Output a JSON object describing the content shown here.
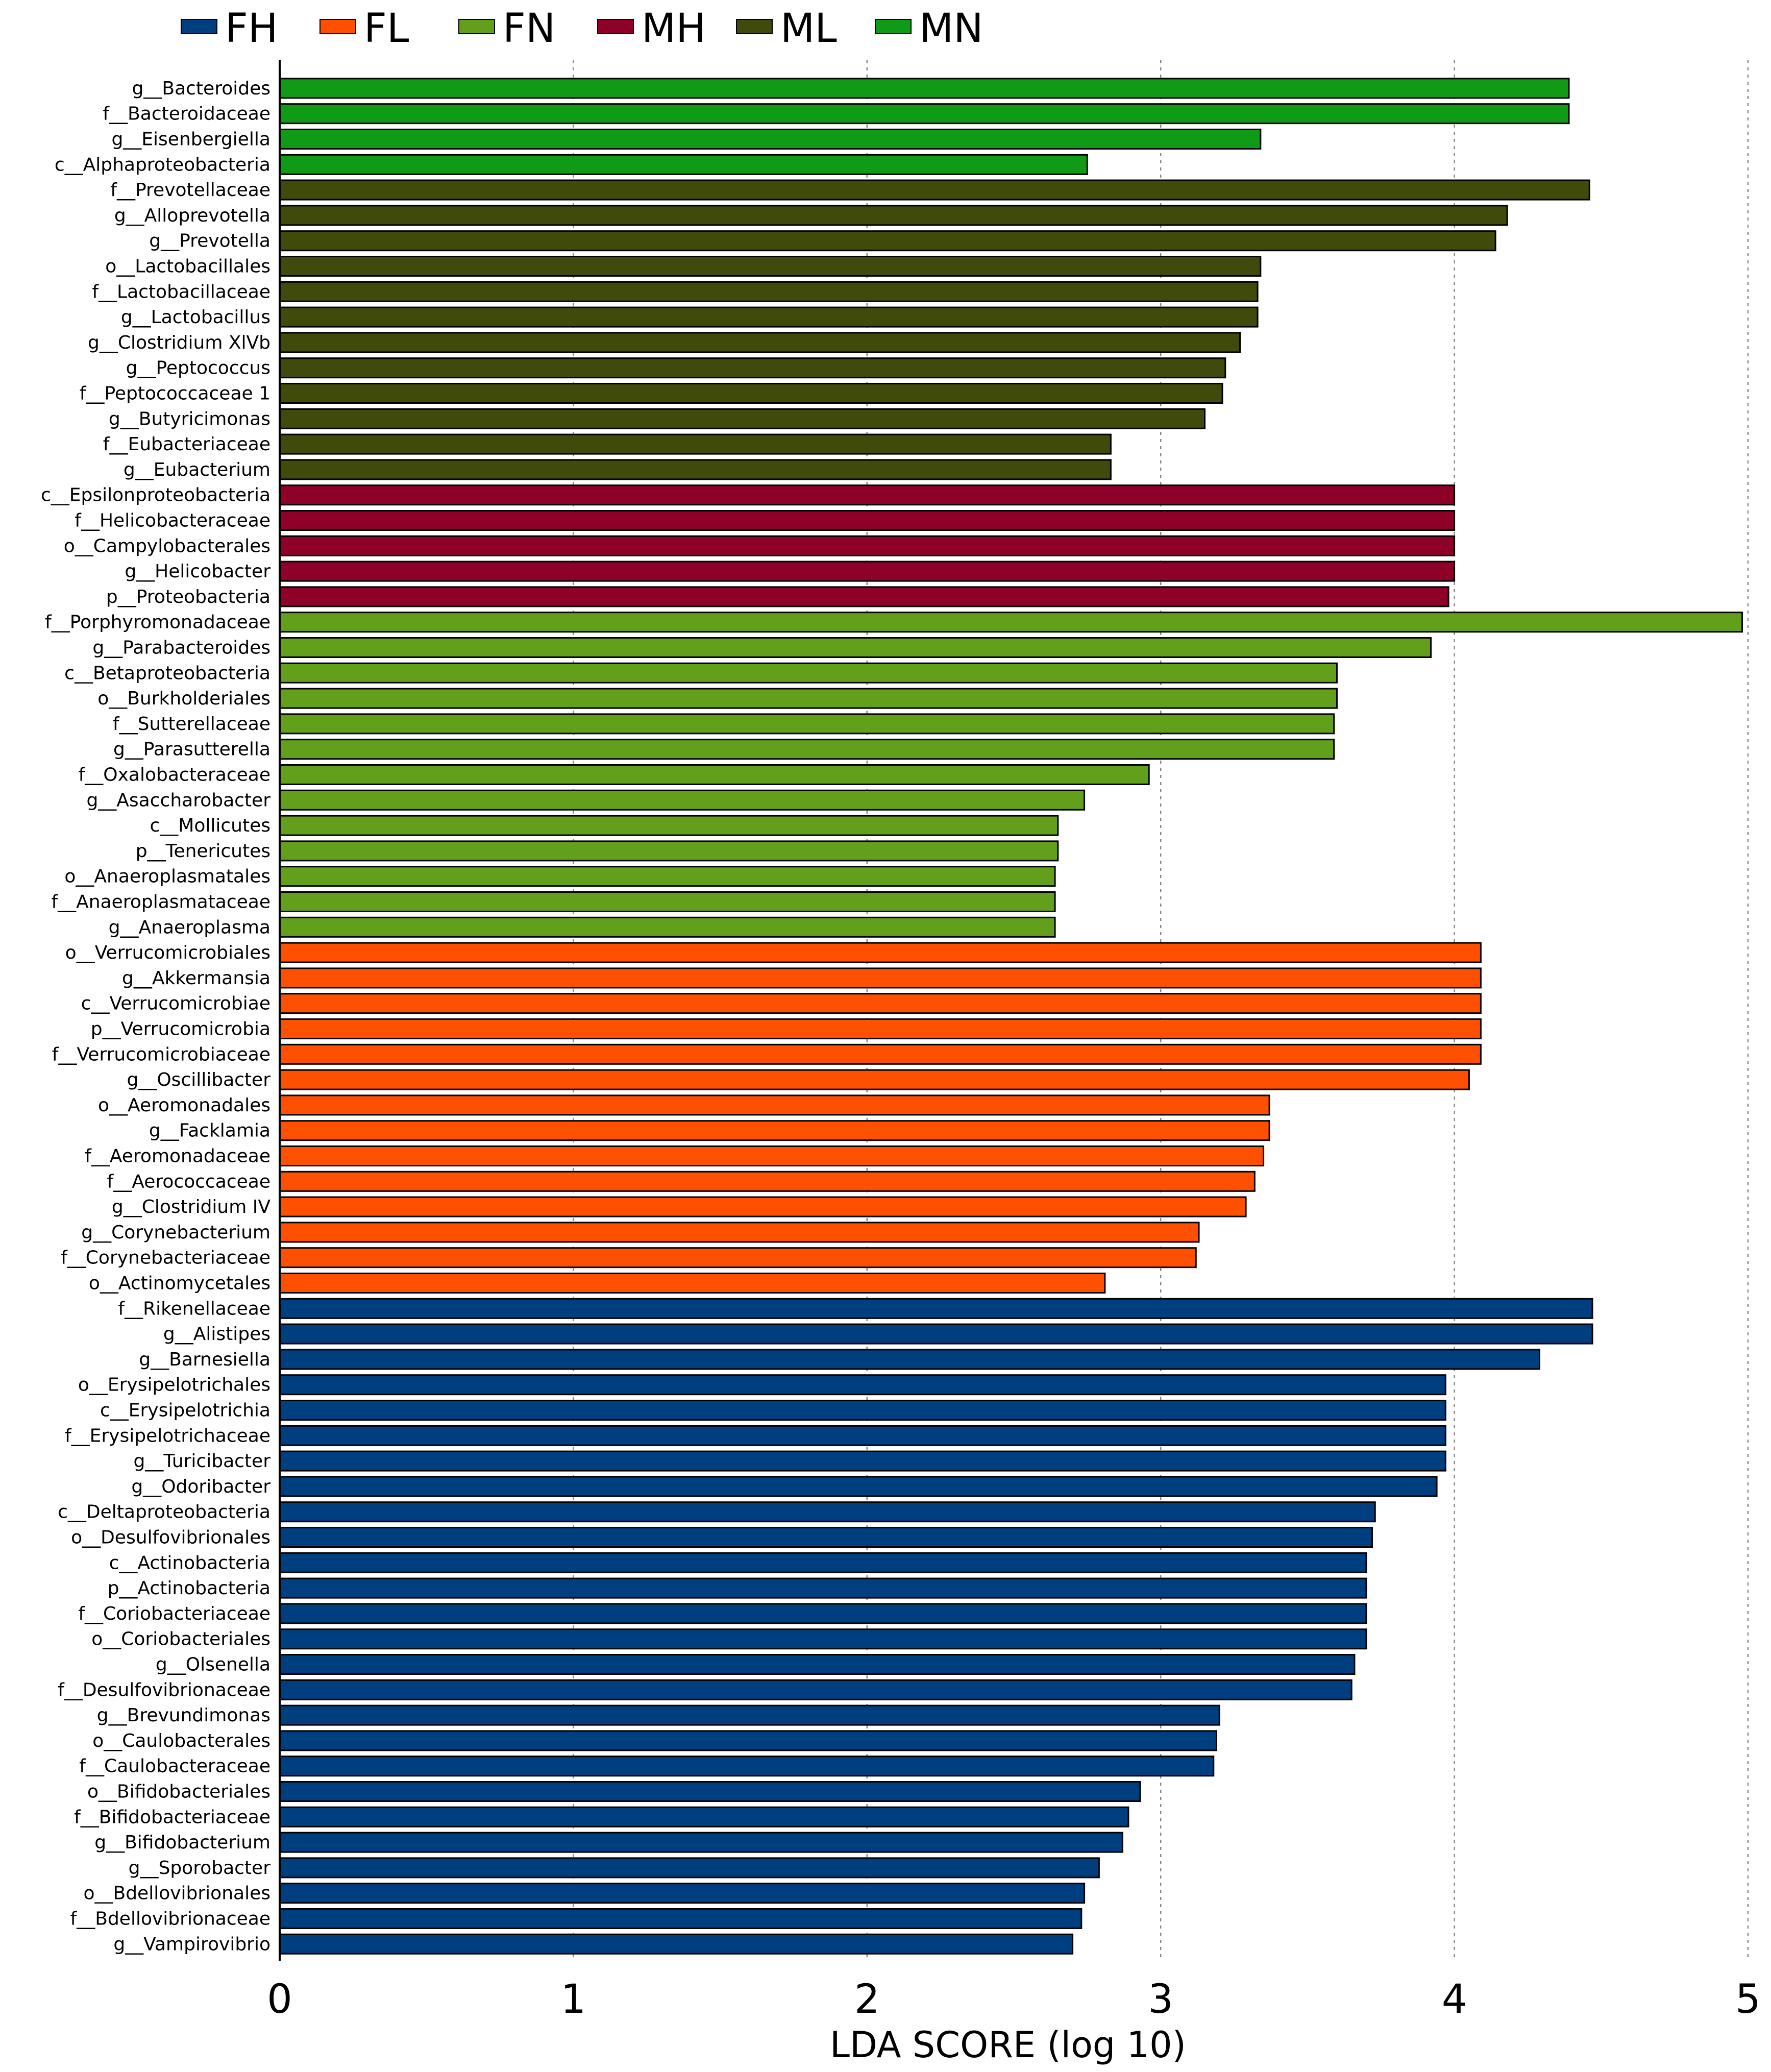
{
  "chart_data": {
    "type": "bar",
    "orientation": "horizontal",
    "title": "",
    "xlabel": "LDA SCORE (log 10)",
    "ylabel": "",
    "xlim": [
      0,
      5
    ],
    "xticks": [
      "0",
      "1",
      "2",
      "3",
      "4",
      "5"
    ],
    "grid": true,
    "legend_position": "top",
    "legend": [
      {
        "name": "FH",
        "color": "#003f7f"
      },
      {
        "name": "FL",
        "color": "#ff4f00"
      },
      {
        "name": "FN",
        "color": "#62a01c"
      },
      {
        "name": "MH",
        "color": "#8f0028"
      },
      {
        "name": "ML",
        "color": "#3f4a0b"
      },
      {
        "name": "MN",
        "color": "#0f9b16"
      }
    ],
    "bars": [
      {
        "label": "g__Bacteroides",
        "value": 4.39,
        "group": "MN"
      },
      {
        "label": "f__Bacteroidaceae",
        "value": 4.39,
        "group": "MN"
      },
      {
        "label": "g__Eisenbergiella",
        "value": 3.34,
        "group": "MN"
      },
      {
        "label": "c__Alphaproteobacteria",
        "value": 2.75,
        "group": "MN"
      },
      {
        "label": "f__Prevotellaceae",
        "value": 4.46,
        "group": "ML"
      },
      {
        "label": "g__Alloprevotella",
        "value": 4.18,
        "group": "ML"
      },
      {
        "label": "g__Prevotella",
        "value": 4.14,
        "group": "ML"
      },
      {
        "label": "o__Lactobacillales",
        "value": 3.34,
        "group": "ML"
      },
      {
        "label": "f__Lactobacillaceae",
        "value": 3.33,
        "group": "ML"
      },
      {
        "label": "g__Lactobacillus",
        "value": 3.33,
        "group": "ML"
      },
      {
        "label": "g__Clostridium XlVb",
        "value": 3.27,
        "group": "ML"
      },
      {
        "label": "g__Peptococcus",
        "value": 3.22,
        "group": "ML"
      },
      {
        "label": "f__Peptococcaceae 1",
        "value": 3.21,
        "group": "ML"
      },
      {
        "label": "g__Butyricimonas",
        "value": 3.15,
        "group": "ML"
      },
      {
        "label": "f__Eubacteriaceae",
        "value": 2.83,
        "group": "ML"
      },
      {
        "label": "g__Eubacterium",
        "value": 2.83,
        "group": "ML"
      },
      {
        "label": "c__Epsilonproteobacteria",
        "value": 4.0,
        "group": "MH"
      },
      {
        "label": "f__Helicobacteraceae",
        "value": 4.0,
        "group": "MH"
      },
      {
        "label": "o__Campylobacterales",
        "value": 4.0,
        "group": "MH"
      },
      {
        "label": "g__Helicobacter",
        "value": 4.0,
        "group": "MH"
      },
      {
        "label": "p__Proteobacteria",
        "value": 3.98,
        "group": "MH"
      },
      {
        "label": "f__Porphyromonadaceae",
        "value": 4.98,
        "group": "FN"
      },
      {
        "label": "g__Parabacteroides",
        "value": 3.92,
        "group": "FN"
      },
      {
        "label": "c__Betaproteobacteria",
        "value": 3.6,
        "group": "FN"
      },
      {
        "label": "o__Burkholderiales",
        "value": 3.6,
        "group": "FN"
      },
      {
        "label": "f__Sutterellaceae",
        "value": 3.59,
        "group": "FN"
      },
      {
        "label": "g__Parasutterella",
        "value": 3.59,
        "group": "FN"
      },
      {
        "label": "f__Oxalobacteraceae",
        "value": 2.96,
        "group": "FN"
      },
      {
        "label": "g__Asaccharobacter",
        "value": 2.74,
        "group": "FN"
      },
      {
        "label": "c__Mollicutes",
        "value": 2.65,
        "group": "FN"
      },
      {
        "label": "p__Tenericutes",
        "value": 2.65,
        "group": "FN"
      },
      {
        "label": "o__Anaeroplasmatales",
        "value": 2.64,
        "group": "FN"
      },
      {
        "label": "f__Anaeroplasmataceae",
        "value": 2.64,
        "group": "FN"
      },
      {
        "label": "g__Anaeroplasma",
        "value": 2.64,
        "group": "FN"
      },
      {
        "label": "o__Verrucomicrobiales",
        "value": 4.09,
        "group": "FL"
      },
      {
        "label": "g__Akkermansia",
        "value": 4.09,
        "group": "FL"
      },
      {
        "label": "c__Verrucomicrobiae",
        "value": 4.09,
        "group": "FL"
      },
      {
        "label": "p__Verrucomicrobia",
        "value": 4.09,
        "group": "FL"
      },
      {
        "label": "f__Verrucomicrobiaceae",
        "value": 4.09,
        "group": "FL"
      },
      {
        "label": "g__Oscillibacter",
        "value": 4.05,
        "group": "FL"
      },
      {
        "label": "o__Aeromonadales",
        "value": 3.37,
        "group": "FL"
      },
      {
        "label": "g__Facklamia",
        "value": 3.37,
        "group": "FL"
      },
      {
        "label": "f__Aeromonadaceae",
        "value": 3.35,
        "group": "FL"
      },
      {
        "label": "f__Aerococcaceae",
        "value": 3.32,
        "group": "FL"
      },
      {
        "label": "g__Clostridium IV",
        "value": 3.29,
        "group": "FL"
      },
      {
        "label": "g__Corynebacterium",
        "value": 3.13,
        "group": "FL"
      },
      {
        "label": "f__Corynebacteriaceae",
        "value": 3.12,
        "group": "FL"
      },
      {
        "label": "o__Actinomycetales",
        "value": 2.81,
        "group": "FL"
      },
      {
        "label": "f__Rikenellaceae",
        "value": 4.47,
        "group": "FH"
      },
      {
        "label": "g__Alistipes",
        "value": 4.47,
        "group": "FH"
      },
      {
        "label": "g__Barnesiella",
        "value": 4.29,
        "group": "FH"
      },
      {
        "label": "o__Erysipelotrichales",
        "value": 3.97,
        "group": "FH"
      },
      {
        "label": "c__Erysipelotrichia",
        "value": 3.97,
        "group": "FH"
      },
      {
        "label": "f__Erysipelotrichaceae",
        "value": 3.97,
        "group": "FH"
      },
      {
        "label": "g__Turicibacter",
        "value": 3.97,
        "group": "FH"
      },
      {
        "label": "g__Odoribacter",
        "value": 3.94,
        "group": "FH"
      },
      {
        "label": "c__Deltaproteobacteria",
        "value": 3.73,
        "group": "FH"
      },
      {
        "label": "o__Desulfovibrionales",
        "value": 3.72,
        "group": "FH"
      },
      {
        "label": "c__Actinobacteria",
        "value": 3.7,
        "group": "FH"
      },
      {
        "label": "p__Actinobacteria",
        "value": 3.7,
        "group": "FH"
      },
      {
        "label": "f__Coriobacteriaceae",
        "value": 3.7,
        "group": "FH"
      },
      {
        "label": "o__Coriobacteriales",
        "value": 3.7,
        "group": "FH"
      },
      {
        "label": "g__Olsenella",
        "value": 3.66,
        "group": "FH"
      },
      {
        "label": "f__Desulfovibrionaceae",
        "value": 3.65,
        "group": "FH"
      },
      {
        "label": "g__Brevundimonas",
        "value": 3.2,
        "group": "FH"
      },
      {
        "label": "o__Caulobacterales",
        "value": 3.19,
        "group": "FH"
      },
      {
        "label": "f__Caulobacteraceae",
        "value": 3.18,
        "group": "FH"
      },
      {
        "label": "o__Bifidobacteriales",
        "value": 2.93,
        "group": "FH"
      },
      {
        "label": "f__Bifidobacteriaceae",
        "value": 2.89,
        "group": "FH"
      },
      {
        "label": "g__Bifidobacterium",
        "value": 2.87,
        "group": "FH"
      },
      {
        "label": "g__Sporobacter",
        "value": 2.79,
        "group": "FH"
      },
      {
        "label": "o__Bdellovibrionales",
        "value": 2.74,
        "group": "FH"
      },
      {
        "label": "f__Bdellovibrionaceae",
        "value": 2.73,
        "group": "FH"
      },
      {
        "label": "g__Vampirovibrio",
        "value": 2.7,
        "group": "FH"
      }
    ]
  }
}
